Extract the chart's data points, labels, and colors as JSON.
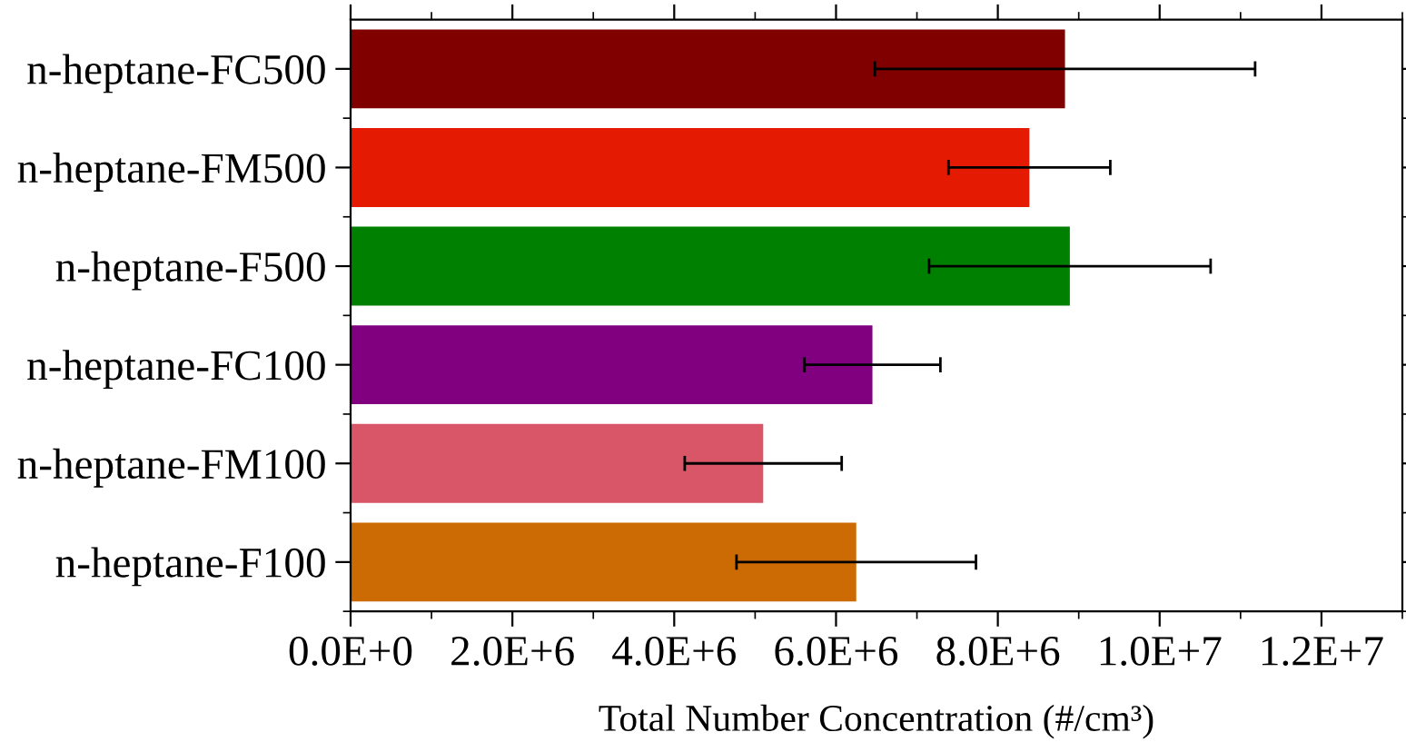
{
  "chart_data": {
    "type": "bar",
    "orientation": "horizontal",
    "xlabel": "Total Number Concentration (#/cm³)",
    "categories": [
      "n-heptane-FC500",
      "n-heptane-FM500",
      "n-heptane-F500",
      "n-heptane-FC100",
      "n-heptane-FM100",
      "n-heptane-F100"
    ],
    "values": [
      8830000,
      8390000,
      8890000,
      6450000,
      5100000,
      6250000
    ],
    "errors": [
      2350000,
      1000000,
      1740000,
      840000,
      970000,
      1480000
    ],
    "colors": [
      "#800000",
      "#e41a02",
      "#008000",
      "#800080",
      "#d95668",
      "#cc6a04"
    ],
    "xlim": [
      0,
      13000000
    ],
    "xticks": [
      {
        "value": 0,
        "label": "0.0E+0"
      },
      {
        "value": 2000000,
        "label": "2.0E+6"
      },
      {
        "value": 4000000,
        "label": "4.0E+6"
      },
      {
        "value": 6000000,
        "label": "6.0E+6"
      },
      {
        "value": 8000000,
        "label": "8.0E+6"
      },
      {
        "value": 10000000,
        "label": "1.0E+7"
      },
      {
        "value": 12000000,
        "label": "1.2E+7"
      }
    ],
    "grid": false,
    "legend": false
  }
}
